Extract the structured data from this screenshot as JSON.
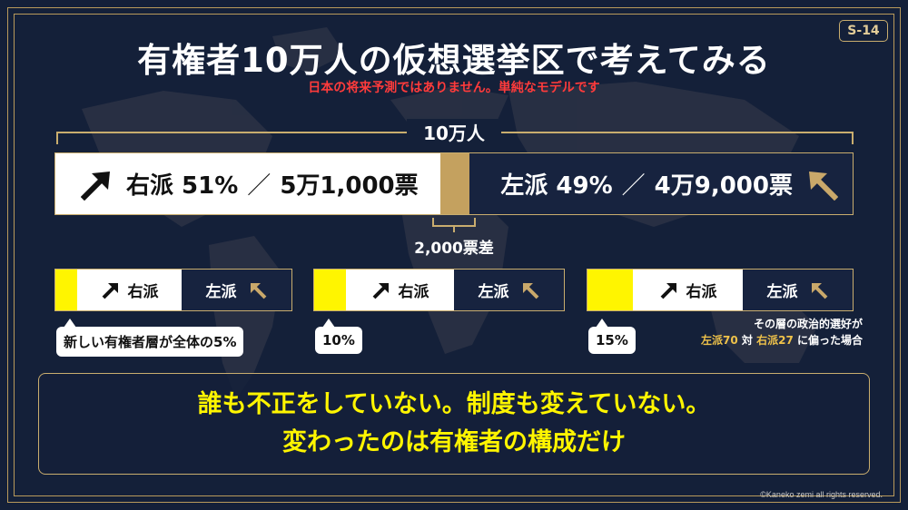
{
  "slide_number": "S-14",
  "title": "有権者10万人の仮想選挙区で考えてみる",
  "subtitle": "日本の将来予測ではありません。単純なモデルです",
  "total_label": "10万人",
  "main_bar": {
    "right": {
      "label": "右派 51%",
      "votes": "5万1,000票",
      "share": 51
    },
    "left": {
      "label": "左派 49%",
      "votes": "4万9,000票",
      "share": 49
    },
    "separator": "／"
  },
  "gap_label": "2,000票差",
  "scenarios": [
    {
      "new_share": 5,
      "right_label": "右派",
      "left_label": "左派",
      "callout": "新しい有権者層が全体の5%"
    },
    {
      "new_share": 10,
      "right_label": "右派",
      "left_label": "左派",
      "callout": "10%"
    },
    {
      "new_share": 15,
      "right_label": "右派",
      "left_label": "左派",
      "callout": "15%"
    }
  ],
  "preference_note": {
    "line1": "その層の政治的選好が",
    "left_part": "左派70",
    "mid": " 対 ",
    "right_part": "右派27",
    "tail": " に偏った場合"
  },
  "conclusion": {
    "line1": "誰も不正をしていない。制度も変えていない。",
    "line2": "変わったのは有権者の構成だけ"
  },
  "copyright": "©Kaneko zemi all rights reserved.",
  "colors": {
    "background": "#142039",
    "gold": "#c9ad6e",
    "new_voters": "#fff500",
    "warning": "#ff3b3b"
  },
  "icons": {
    "right_arrow": "arrow-up-right-icon",
    "left_arrow": "arrow-up-left-icon"
  }
}
